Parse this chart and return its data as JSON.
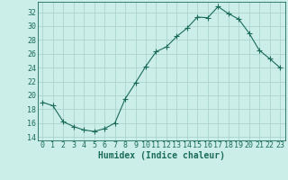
{
  "x": [
    0,
    1,
    2,
    3,
    4,
    5,
    6,
    7,
    8,
    9,
    10,
    11,
    12,
    13,
    14,
    15,
    16,
    17,
    18,
    19,
    20,
    21,
    22,
    23
  ],
  "y": [
    19.0,
    18.5,
    16.2,
    15.5,
    15.0,
    14.8,
    15.2,
    16.0,
    19.5,
    21.8,
    24.2,
    26.3,
    27.0,
    28.5,
    29.7,
    31.3,
    31.2,
    32.8,
    31.8,
    31.0,
    29.0,
    26.5,
    25.3,
    24.0
  ],
  "line_color": "#1a6b5a",
  "marker": "+",
  "marker_size": 4,
  "bg_color": "#cceee8",
  "grid_color": "#aad4cc",
  "xlabel": "Humidex (Indice chaleur)",
  "ylim": [
    13.5,
    33.5
  ],
  "yticks": [
    14,
    16,
    18,
    20,
    22,
    24,
    26,
    28,
    30,
    32
  ],
  "xlim": [
    -0.5,
    23.5
  ],
  "xticks": [
    0,
    1,
    2,
    3,
    4,
    5,
    6,
    7,
    8,
    9,
    10,
    11,
    12,
    13,
    14,
    15,
    16,
    17,
    18,
    19,
    20,
    21,
    22,
    23
  ],
  "tick_color": "#1a6b5a",
  "label_fontsize": 6,
  "axis_fontsize": 7
}
